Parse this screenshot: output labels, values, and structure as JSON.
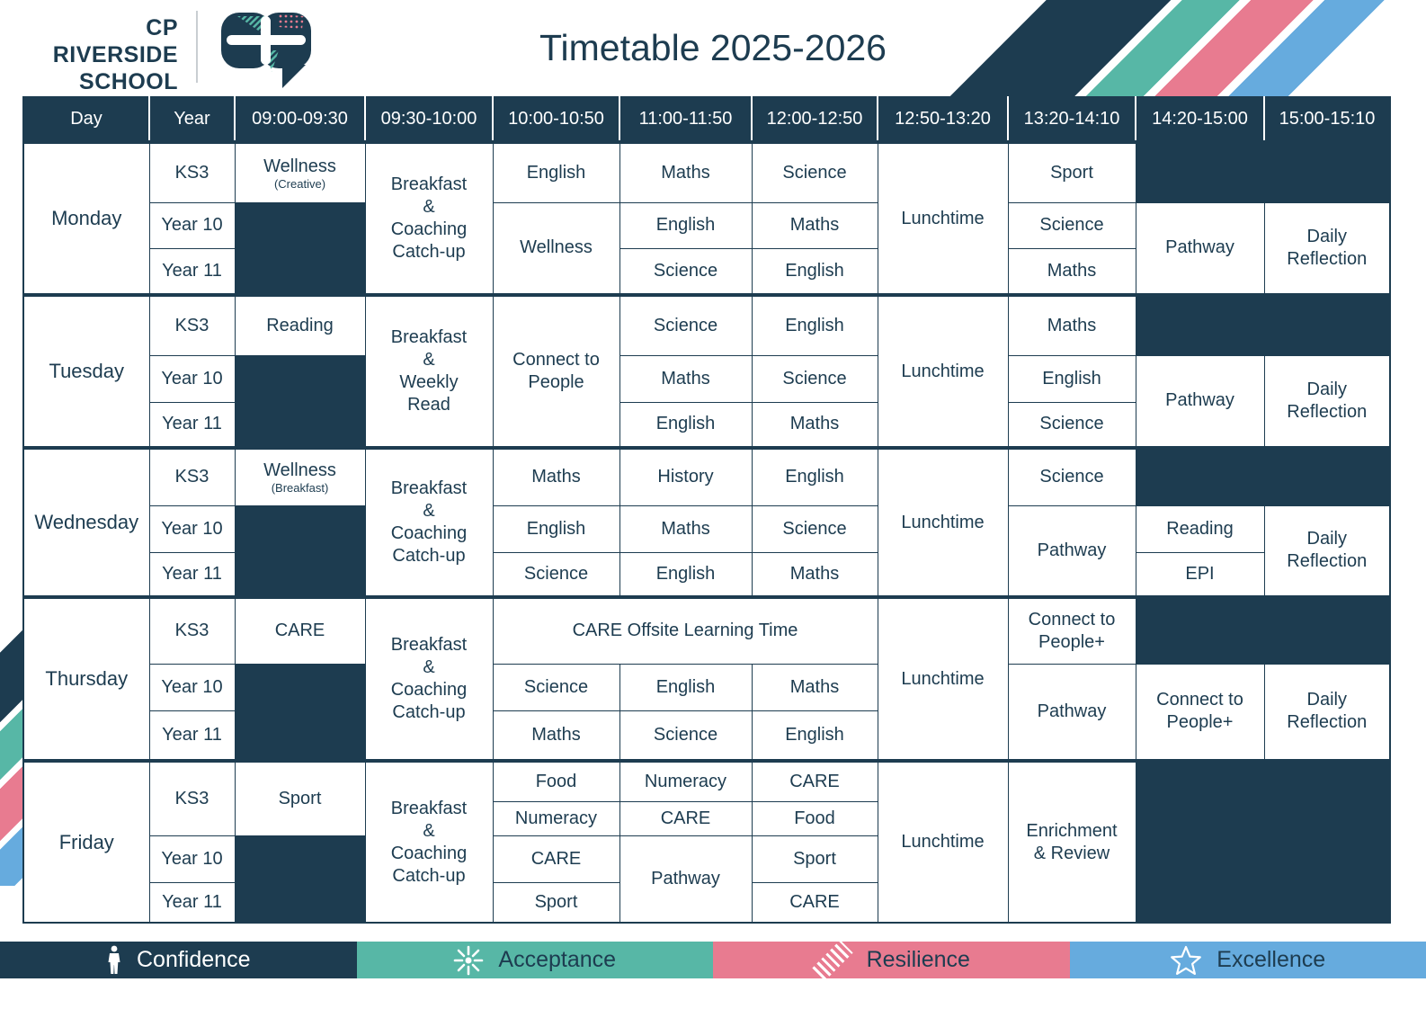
{
  "brand": {
    "school_name_line1": "CP RIVERSIDE",
    "school_name_line2": "SCHOOL",
    "title": "Timetable 2025-2026"
  },
  "colors": {
    "navy": "#1d3c50",
    "teal": "#57b7a6",
    "pink": "#e87b90",
    "blue": "#66abde"
  },
  "timetable": {
    "columns": [
      "Day",
      "Year",
      "09:00-09:30",
      "09:30-10:00",
      "10:00-10:50",
      "11:00-11:50",
      "12:00-12:50",
      "12:50-13:20",
      "13:20-14:10",
      "14:20-15:00",
      "15:00-15:10"
    ],
    "rows": [
      [
        {
          "text": "Monday",
          "kind": "day",
          "rowspan": 3
        },
        {
          "text": "KS3",
          "kind": "year"
        },
        {
          "text": "Wellness",
          "sub": "(Creative)"
        },
        {
          "text": "Breakfast\n&\nCoaching\nCatch-up",
          "rowspan": 3
        },
        {
          "text": "English"
        },
        {
          "text": "Maths"
        },
        {
          "text": "Science"
        },
        {
          "text": "Lunchtime",
          "rowspan": 3
        },
        {
          "text": "Sport"
        },
        {
          "kind": "dark",
          "colspan": 2
        }
      ],
      [
        {
          "text": "Year 10",
          "kind": "year"
        },
        {
          "kind": "dark",
          "rowspan": 2
        },
        {
          "text": "Wellness",
          "rowspan": 2
        },
        {
          "text": "English"
        },
        {
          "text": "Maths"
        },
        {
          "text": "Science"
        },
        {
          "text": "Pathway",
          "rowspan": 2
        },
        {
          "text": "Daily\nReflection",
          "rowspan": 2
        }
      ],
      [
        {
          "text": "Year 11",
          "kind": "year"
        },
        {
          "text": "Science"
        },
        {
          "text": "English"
        },
        {
          "text": "Maths"
        }
      ],
      [
        {
          "text": "Tuesday",
          "kind": "day",
          "rowspan": 3
        },
        {
          "text": "KS3",
          "kind": "year"
        },
        {
          "text": "Reading"
        },
        {
          "text": "Breakfast\n&\nWeekly\nRead",
          "rowspan": 3
        },
        {
          "text": "Connect to\nPeople",
          "rowspan": 3
        },
        {
          "text": "Science"
        },
        {
          "text": "English"
        },
        {
          "text": "Lunchtime",
          "rowspan": 3
        },
        {
          "text": "Maths"
        },
        {
          "kind": "dark",
          "colspan": 2
        }
      ],
      [
        {
          "text": "Year 10",
          "kind": "year"
        },
        {
          "kind": "dark",
          "rowspan": 2
        },
        {
          "text": "Maths"
        },
        {
          "text": "Science"
        },
        {
          "text": "English"
        },
        {
          "text": "Pathway",
          "rowspan": 2
        },
        {
          "text": "Daily\nReflection",
          "rowspan": 2
        }
      ],
      [
        {
          "text": "Year 11",
          "kind": "year"
        },
        {
          "text": "English"
        },
        {
          "text": "Maths"
        },
        {
          "text": "Science"
        }
      ],
      [
        {
          "text": "Wednesday",
          "kind": "day",
          "rowspan": 3
        },
        {
          "text": "KS3",
          "kind": "year"
        },
        {
          "text": "Wellness",
          "sub": "(Breakfast)"
        },
        {
          "text": "Breakfast\n&\nCoaching\nCatch-up",
          "rowspan": 3
        },
        {
          "text": "Maths"
        },
        {
          "text": "History"
        },
        {
          "text": "English"
        },
        {
          "text": "Lunchtime",
          "rowspan": 3
        },
        {
          "text": "Science"
        },
        {
          "kind": "dark",
          "colspan": 2
        }
      ],
      [
        {
          "text": "Year 10",
          "kind": "year"
        },
        {
          "kind": "dark",
          "rowspan": 2
        },
        {
          "text": "English"
        },
        {
          "text": "Maths"
        },
        {
          "text": "Science"
        },
        {
          "text": "Pathway",
          "rowspan": 2
        },
        {
          "text": "Reading"
        },
        {
          "text": "Daily\nReflection",
          "rowspan": 2
        }
      ],
      [
        {
          "text": "Year 11",
          "kind": "year"
        },
        {
          "text": "Science"
        },
        {
          "text": "English"
        },
        {
          "text": "Maths"
        },
        {
          "text": "EPI"
        }
      ],
      [
        {
          "text": "Thursday",
          "kind": "day",
          "rowspan": 3
        },
        {
          "text": "KS3",
          "kind": "year"
        },
        {
          "text": "CARE"
        },
        {
          "text": "Breakfast\n&\nCoaching\nCatch-up",
          "rowspan": 3
        },
        {
          "text": "CARE Offsite Learning Time",
          "colspan": 3
        },
        {
          "text": "Lunchtime",
          "rowspan": 3
        },
        {
          "text": "Connect to\nPeople+"
        },
        {
          "kind": "dark",
          "colspan": 2
        }
      ],
      [
        {
          "text": "Year 10",
          "kind": "year"
        },
        {
          "kind": "dark",
          "rowspan": 2
        },
        {
          "text": "Science"
        },
        {
          "text": "English"
        },
        {
          "text": "Maths"
        },
        {
          "text": "Pathway",
          "rowspan": 2
        },
        {
          "text": "Connect to\nPeople+",
          "rowspan": 2
        },
        {
          "text": "Daily\nReflection",
          "rowspan": 2
        }
      ],
      [
        {
          "text": "Year 11",
          "kind": "year"
        },
        {
          "text": "Maths"
        },
        {
          "text": "Science"
        },
        {
          "text": "English"
        }
      ],
      [
        {
          "text": "Friday",
          "kind": "day",
          "rowspan": 4
        },
        {
          "text": "KS3",
          "kind": "year",
          "rowspan": 2
        },
        {
          "text": "Sport",
          "rowspan": 2
        },
        {
          "text": "Breakfast\n&\nCoaching\nCatch-up",
          "rowspan": 4
        },
        {
          "text": "Food"
        },
        {
          "text": "Numeracy"
        },
        {
          "text": "CARE"
        },
        {
          "text": "Lunchtime",
          "rowspan": 4
        },
        {
          "text": "Enrichment\n& Review",
          "rowspan": 4
        },
        {
          "kind": "dark",
          "colspan": 2,
          "rowspan": 4
        }
      ],
      [
        {
          "text": "Numeracy"
        },
        {
          "text": "CARE"
        },
        {
          "text": "Food"
        }
      ],
      [
        {
          "text": "Year 10",
          "kind": "year"
        },
        {
          "kind": "dark",
          "rowspan": 2
        },
        {
          "text": "CARE"
        },
        {
          "text": "Pathway",
          "rowspan": 2
        },
        {
          "text": "Sport"
        }
      ],
      [
        {
          "text": "Year 11",
          "kind": "year"
        },
        {
          "text": "Sport"
        },
        {
          "text": "CARE"
        }
      ]
    ]
  },
  "values_bar": [
    {
      "label": "Confidence",
      "icon": "person-icon"
    },
    {
      "label": "Acceptance",
      "icon": "people-circle-icon"
    },
    {
      "label": "Resilience",
      "icon": "diagonal-stripes-icon"
    },
    {
      "label": "Excellence",
      "icon": "star-icon"
    }
  ]
}
